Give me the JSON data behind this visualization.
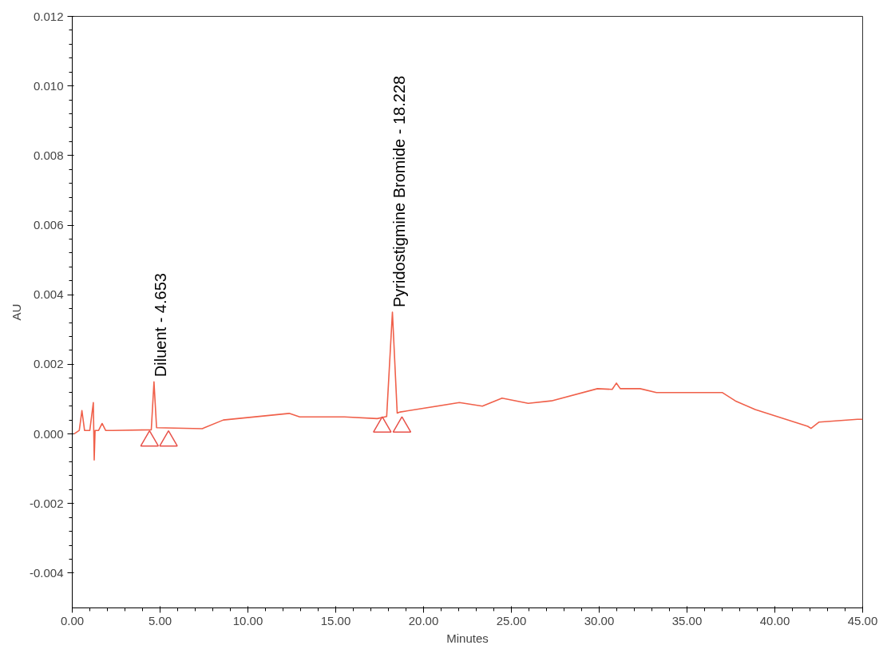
{
  "chart_data": {
    "type": "line",
    "xlabel": "Minutes",
    "ylabel": "AU",
    "xlim": [
      0,
      45
    ],
    "ylim": [
      -0.005,
      0.012
    ],
    "xticks": [
      {
        "value": 0,
        "label": "0.00"
      },
      {
        "value": 5,
        "label": "5.00"
      },
      {
        "value": 10,
        "label": "10.00"
      },
      {
        "value": 15,
        "label": "15.00"
      },
      {
        "value": 20,
        "label": "20.00"
      },
      {
        "value": 25,
        "label": "25.00"
      },
      {
        "value": 30,
        "label": "30.00"
      },
      {
        "value": 35,
        "label": "35.00"
      },
      {
        "value": 40,
        "label": "40.00"
      },
      {
        "value": 45,
        "label": "45.00"
      }
    ],
    "yticks": [
      {
        "value": -0.004,
        "label": "-0.004"
      },
      {
        "value": -0.002,
        "label": "-0.002"
      },
      {
        "value": 0,
        "label": "0.000"
      },
      {
        "value": 0.002,
        "label": "0.002"
      },
      {
        "value": 0.004,
        "label": "0.004"
      },
      {
        "value": 0.006,
        "label": "0.006"
      },
      {
        "value": 0.008,
        "label": "0.008"
      },
      {
        "value": 0.01,
        "label": "0.010"
      },
      {
        "value": 0.012,
        "label": "0.012"
      }
    ],
    "grid": false,
    "marker": "none",
    "line_style": "solid",
    "series": [
      {
        "color": "#f0604a",
        "x": [
          0.1,
          0.4,
          0.55,
          0.7,
          1.0,
          1.2,
          1.25,
          1.3,
          1.5,
          1.7,
          1.9,
          2.3,
          4.5,
          4.653,
          4.8,
          7.4,
          8.6,
          12.35,
          12.95,
          15.5,
          17.36,
          17.9,
          18.228,
          18.5,
          18.67,
          22.04,
          23.35,
          24.47,
          25.96,
          27.28,
          29.9,
          30.74,
          30.98,
          31.2,
          32.33,
          33.26,
          37.0,
          37.75,
          38.88,
          41.87,
          42.06,
          42.52,
          44.7,
          45
        ],
        "values": [
          0.0,
          0.0001,
          0.00067,
          0.0001,
          0.0001,
          0.0009,
          -0.00075,
          0.0001,
          0.0001,
          0.0003,
          0.0001,
          0.0001,
          0.00012,
          0.0015,
          0.00018,
          0.00015,
          0.0004,
          0.00059,
          0.00049,
          0.00049,
          0.00044,
          0.0005,
          0.0035,
          0.0006,
          0.00063,
          0.0009,
          0.0008,
          0.00103,
          0.00088,
          0.00095,
          0.0013,
          0.00128,
          0.00146,
          0.0013,
          0.0013,
          0.00119,
          0.00119,
          0.00095,
          0.0007,
          0.00022,
          0.00016,
          0.00034,
          0.00042,
          0.00042
        ]
      },
      {
        "type": "scatter",
        "marker": "triangle",
        "color": "#e8524a",
        "x": [
          4.4,
          5.48,
          17.65,
          18.77
        ],
        "values": [
          -0.0002,
          -0.0002,
          0.0002,
          0.0002
        ]
      }
    ],
    "annotations": [
      {
        "text": "Diluent - 4.653",
        "x": 4.653,
        "y": 0.0015
      },
      {
        "text": "Pyridostigmine Bromide - 18.228",
        "x": 18.228,
        "y": 0.0035
      }
    ]
  }
}
